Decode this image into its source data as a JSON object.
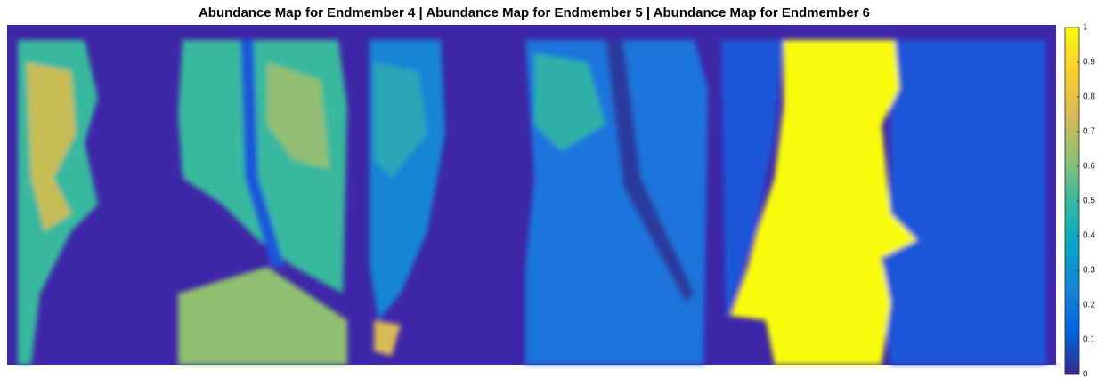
{
  "chart_data": {
    "type": "image",
    "title": "Abundance Map for Endmember 4 | Abundance Map for Endmember 5 | Abundance Map for Endmember 6",
    "clim": [
      0,
      1
    ],
    "cticks": [
      0,
      0.1,
      0.2,
      0.3,
      0.4,
      0.5,
      0.6,
      0.7,
      0.8,
      0.9,
      1
    ],
    "colormap": [
      "#352a87",
      "#0363e1",
      "#1485d4",
      "#06a7c6",
      "#38b99e",
      "#92bf73",
      "#d9ba56",
      "#fcce2e",
      "#f9fb0e"
    ]
  }
}
